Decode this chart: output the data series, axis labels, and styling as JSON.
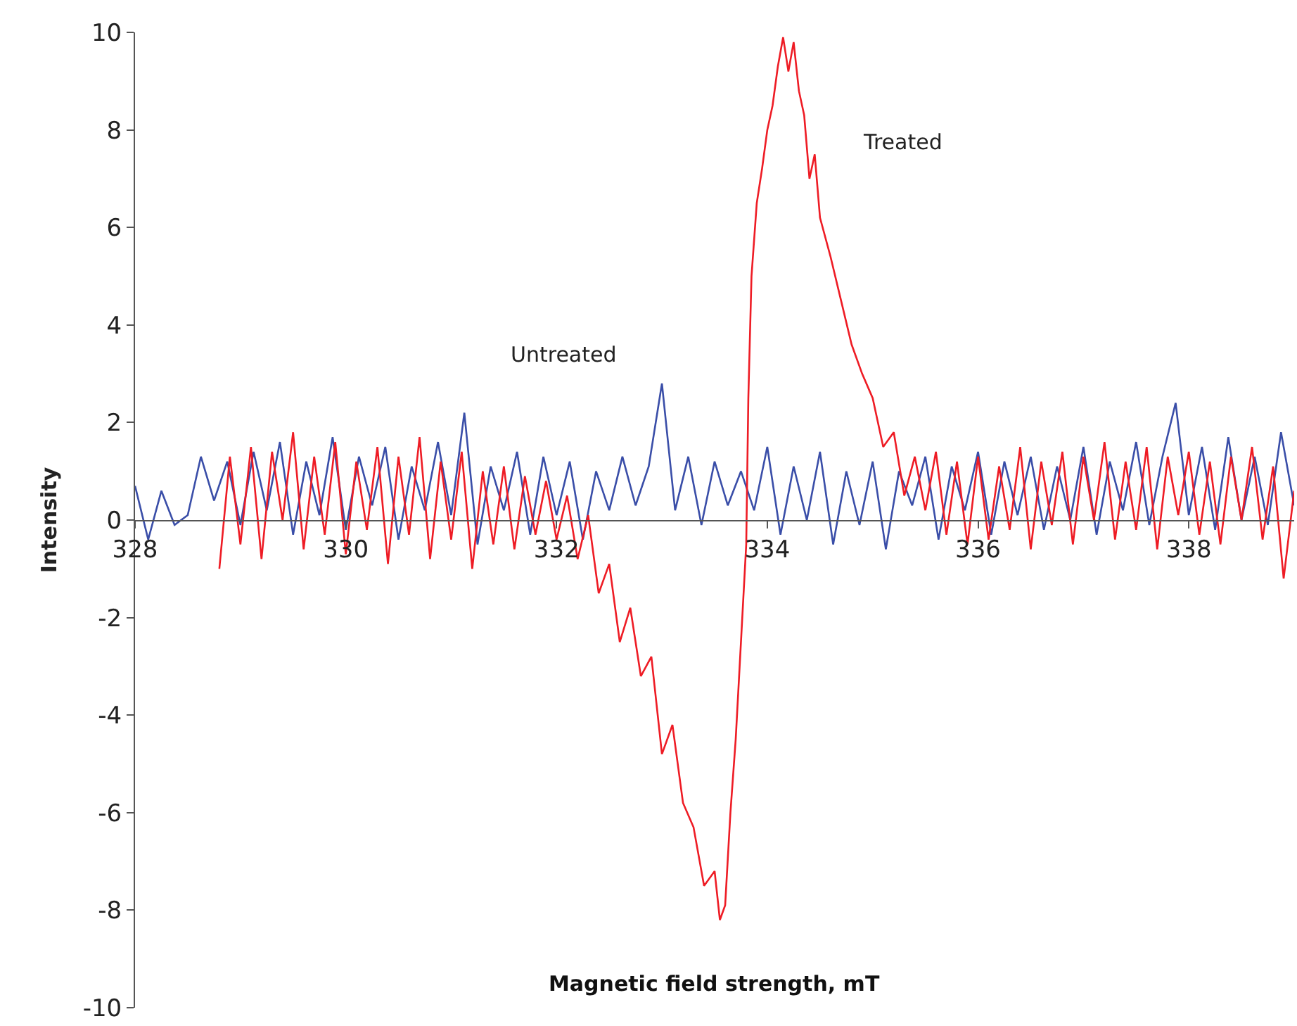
{
  "chart_data": {
    "type": "line",
    "xlabel": "Magnetic field strength, mT",
    "ylabel": "Intensity",
    "xlim": [
      328,
      339
    ],
    "ylim": [
      -10,
      10
    ],
    "xticks": [
      328,
      330,
      332,
      334,
      336,
      338
    ],
    "yticks": [
      -10,
      -8,
      -6,
      -4,
      -2,
      0,
      2,
      4,
      6,
      8,
      10
    ],
    "legend": false,
    "marker": "none",
    "line_style": "solid",
    "series": [
      {
        "name": "Untreated",
        "color": "#3a4ea8",
        "x": [
          328.0,
          328.125,
          328.25,
          328.375,
          328.5,
          328.625,
          328.75,
          328.875,
          329.0,
          329.125,
          329.25,
          329.375,
          329.5,
          329.625,
          329.75,
          329.875,
          330.0,
          330.125,
          330.25,
          330.375,
          330.5,
          330.625,
          330.75,
          330.875,
          331.0,
          331.125,
          331.25,
          331.375,
          331.5,
          331.625,
          331.75,
          331.875,
          332.0,
          332.125,
          332.25,
          332.375,
          332.5,
          332.625,
          332.75,
          332.875,
          333.0,
          333.125,
          333.25,
          333.375,
          333.5,
          333.625,
          333.75,
          333.875,
          334.0,
          334.125,
          334.25,
          334.375,
          334.5,
          334.625,
          334.75,
          334.875,
          335.0,
          335.125,
          335.25,
          335.375,
          335.5,
          335.625,
          335.75,
          335.875,
          336.0,
          336.125,
          336.25,
          336.375,
          336.5,
          336.625,
          336.75,
          336.875,
          337.0,
          337.125,
          337.25,
          337.375,
          337.5,
          337.625,
          337.75,
          337.875,
          338.0,
          338.125,
          338.25,
          338.375,
          338.5,
          338.625,
          338.75,
          338.875,
          339.0
        ],
        "values": [
          0.7,
          -0.4,
          0.6,
          -0.1,
          0.1,
          1.3,
          0.4,
          1.2,
          -0.1,
          1.4,
          0.2,
          1.6,
          -0.3,
          1.2,
          0.1,
          1.7,
          -0.2,
          1.3,
          0.3,
          1.5,
          -0.4,
          1.1,
          0.2,
          1.6,
          0.1,
          2.2,
          -0.5,
          1.1,
          0.2,
          1.4,
          -0.3,
          1.3,
          0.1,
          1.2,
          -0.4,
          1.0,
          0.2,
          1.3,
          0.3,
          1.1,
          2.8,
          0.2,
          1.3,
          -0.1,
          1.2,
          0.3,
          1.0,
          0.2,
          1.5,
          -0.3,
          1.1,
          0.0,
          1.4,
          -0.5,
          1.0,
          -0.1,
          1.2,
          -0.6,
          1.0,
          0.3,
          1.3,
          -0.4,
          1.1,
          0.2,
          1.4,
          -0.3,
          1.2,
          0.1,
          1.3,
          -0.2,
          1.1,
          0.0,
          1.5,
          -0.3,
          1.2,
          0.2,
          1.6,
          -0.1,
          1.3,
          2.4,
          0.1,
          1.5,
          -0.2,
          1.7,
          0.0,
          1.3,
          -0.1,
          1.8,
          0.3
        ]
      },
      {
        "name": "Treated",
        "color": "#ee1c25",
        "x": [
          328.8,
          328.9,
          329.0,
          329.1,
          329.2,
          329.3,
          329.4,
          329.5,
          329.6,
          329.7,
          329.8,
          329.9,
          330.0,
          330.1,
          330.2,
          330.3,
          330.4,
          330.5,
          330.6,
          330.7,
          330.8,
          330.9,
          331.0,
          331.1,
          331.2,
          331.3,
          331.4,
          331.5,
          331.6,
          331.7,
          331.8,
          331.9,
          332.0,
          332.1,
          332.2,
          332.3,
          332.4,
          332.5,
          332.6,
          332.7,
          332.8,
          332.9,
          333.0,
          333.1,
          333.2,
          333.3,
          333.4,
          333.5,
          333.55,
          333.6,
          333.65,
          333.7,
          333.75,
          333.8,
          333.82,
          333.85,
          333.9,
          333.95,
          334.0,
          334.05,
          334.1,
          334.15,
          334.2,
          334.25,
          334.3,
          334.35,
          334.4,
          334.45,
          334.5,
          334.6,
          334.7,
          334.8,
          334.9,
          335.0,
          335.1,
          335.2,
          335.3,
          335.4,
          335.5,
          335.6,
          335.7,
          335.8,
          335.9,
          336.0,
          336.1,
          336.2,
          336.3,
          336.4,
          336.5,
          336.6,
          336.7,
          336.8,
          336.9,
          337.0,
          337.1,
          337.2,
          337.3,
          337.4,
          337.5,
          337.6,
          337.7,
          337.8,
          337.9,
          338.0,
          338.1,
          338.2,
          338.3,
          338.4,
          338.5,
          338.6,
          338.7,
          338.8,
          338.9,
          339.0
        ],
        "values": [
          -1.0,
          1.3,
          -0.5,
          1.5,
          -0.8,
          1.4,
          0.0,
          1.8,
          -0.6,
          1.3,
          -0.3,
          1.6,
          -0.7,
          1.2,
          -0.2,
          1.5,
          -0.9,
          1.3,
          -0.3,
          1.7,
          -0.8,
          1.2,
          -0.4,
          1.4,
          -1.0,
          1.0,
          -0.5,
          1.1,
          -0.6,
          0.9,
          -0.3,
          0.8,
          -0.4,
          0.5,
          -0.8,
          0.1,
          -1.5,
          -0.9,
          -2.5,
          -1.8,
          -3.2,
          -2.8,
          -4.8,
          -4.2,
          -5.8,
          -6.3,
          -7.5,
          -7.2,
          -8.2,
          -7.9,
          -6.0,
          -4.5,
          -2.5,
          -0.5,
          2.5,
          5.0,
          6.5,
          7.2,
          8.0,
          8.5,
          9.3,
          9.9,
          9.2,
          9.8,
          8.8,
          8.3,
          7.0,
          7.5,
          6.2,
          5.4,
          4.5,
          3.6,
          3.0,
          2.5,
          1.5,
          1.8,
          0.5,
          1.3,
          0.2,
          1.4,
          -0.3,
          1.2,
          -0.5,
          1.3,
          -0.4,
          1.1,
          -0.2,
          1.5,
          -0.6,
          1.2,
          -0.1,
          1.4,
          -0.5,
          1.3,
          0.0,
          1.6,
          -0.4,
          1.2,
          -0.2,
          1.5,
          -0.6,
          1.3,
          0.1,
          1.4,
          -0.3,
          1.2,
          -0.5,
          1.3,
          0.0,
          1.5,
          -0.4,
          1.1,
          -1.2,
          0.6
        ]
      }
    ]
  }
}
